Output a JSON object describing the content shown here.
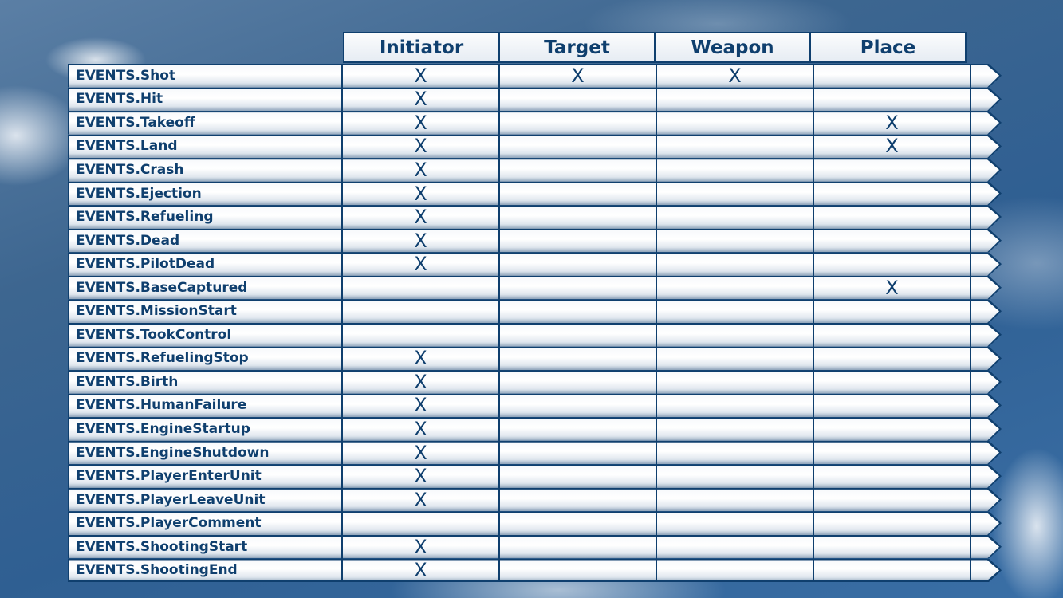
{
  "columns": [
    "Initiator",
    "Target",
    "Weapon",
    "Place"
  ],
  "rows": [
    {
      "event": "EVENTS.Shot",
      "cells": [
        "X",
        "X",
        "X",
        ""
      ]
    },
    {
      "event": "EVENTS.Hit",
      "cells": [
        "X",
        "",
        "",
        ""
      ]
    },
    {
      "event": "EVENTS.Takeoff",
      "cells": [
        "X",
        "",
        "",
        "X"
      ]
    },
    {
      "event": "EVENTS.Land",
      "cells": [
        "X",
        "",
        "",
        "X"
      ]
    },
    {
      "event": "EVENTS.Crash",
      "cells": [
        "X",
        "",
        "",
        ""
      ]
    },
    {
      "event": "EVENTS.Ejection",
      "cells": [
        "X",
        "",
        "",
        ""
      ]
    },
    {
      "event": "EVENTS.Refueling",
      "cells": [
        "X",
        "",
        "",
        ""
      ]
    },
    {
      "event": "EVENTS.Dead",
      "cells": [
        "X",
        "",
        "",
        ""
      ]
    },
    {
      "event": "EVENTS.PilotDead",
      "cells": [
        "X",
        "",
        "",
        ""
      ]
    },
    {
      "event": "EVENTS.BaseCaptured",
      "cells": [
        "",
        "",
        "",
        "X"
      ]
    },
    {
      "event": "EVENTS.MissionStart",
      "cells": [
        "",
        "",
        "",
        ""
      ]
    },
    {
      "event": "EVENTS.TookControl",
      "cells": [
        "",
        "",
        "",
        ""
      ]
    },
    {
      "event": "EVENTS.RefuelingStop",
      "cells": [
        "X",
        "",
        "",
        ""
      ]
    },
    {
      "event": "EVENTS.Birth",
      "cells": [
        "X",
        "",
        "",
        ""
      ]
    },
    {
      "event": "EVENTS.HumanFailure",
      "cells": [
        "X",
        "",
        "",
        ""
      ]
    },
    {
      "event": "EVENTS.EngineStartup",
      "cells": [
        "X",
        "",
        "",
        ""
      ]
    },
    {
      "event": "EVENTS.EngineShutdown",
      "cells": [
        "X",
        "",
        "",
        ""
      ]
    },
    {
      "event": "EVENTS.PlayerEnterUnit",
      "cells": [
        "X",
        "",
        "",
        ""
      ]
    },
    {
      "event": "EVENTS.PlayerLeaveUnit",
      "cells": [
        "X",
        "",
        "",
        ""
      ]
    },
    {
      "event": "EVENTS.PlayerComment",
      "cells": [
        "",
        "",
        "",
        ""
      ]
    },
    {
      "event": "EVENTS.ShootingStart",
      "cells": [
        "X",
        "",
        "",
        ""
      ]
    },
    {
      "event": "EVENTS.ShootingEnd",
      "cells": [
        "X",
        "",
        "",
        ""
      ]
    }
  ],
  "colors": {
    "text": "#0f3f6e",
    "border": "#0f3f6e"
  }
}
